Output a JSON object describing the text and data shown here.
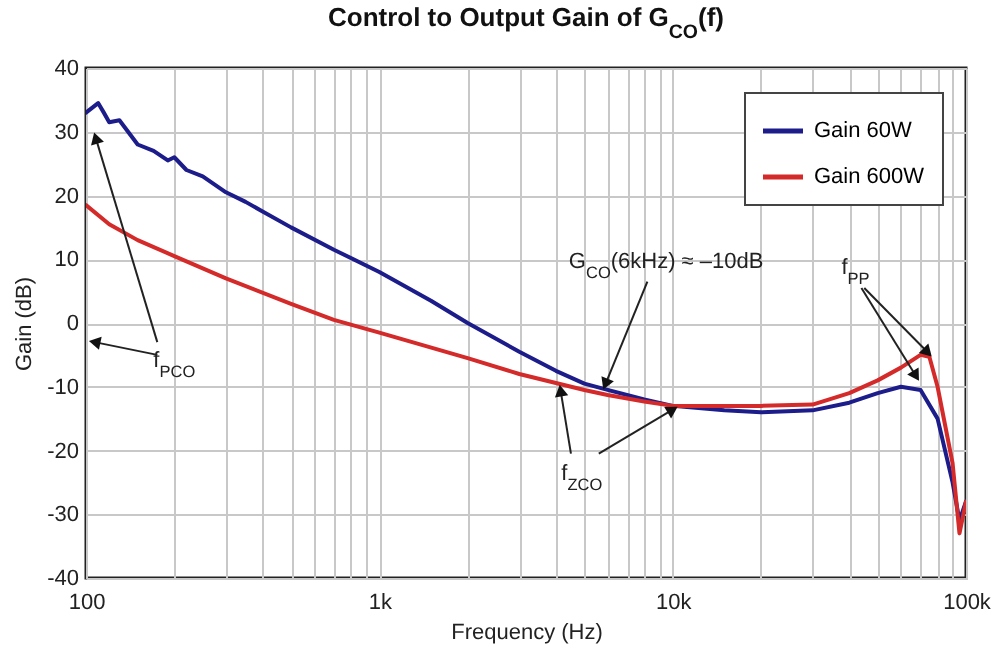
{
  "chart_data": {
    "type": "line",
    "title": "Control to Output Gain of G$_{CO}$(f)",
    "xlabel": "Frequency (Hz)",
    "ylabel": "Gain (dB)",
    "log": "x",
    "grid": true,
    "legend": "top right",
    "line_style": "solid",
    "xlim": [
      100,
      100000
    ],
    "ylim": [
      -40,
      40
    ],
    "xticks": [
      {
        "value": 100,
        "label": "100"
      },
      {
        "value": 200,
        "label": null
      },
      {
        "value": 300,
        "label": null
      },
      {
        "value": 400,
        "label": null
      },
      {
        "value": 500,
        "label": null
      },
      {
        "value": 600,
        "label": null
      },
      {
        "value": 700,
        "label": null
      },
      {
        "value": 800,
        "label": null
      },
      {
        "value": 900,
        "label": null
      },
      {
        "value": 1000,
        "label": "1k"
      },
      {
        "value": 2000,
        "label": null
      },
      {
        "value": 3000,
        "label": null
      },
      {
        "value": 4000,
        "label": null
      },
      {
        "value": 5000,
        "label": null
      },
      {
        "value": 6000,
        "label": null
      },
      {
        "value": 7000,
        "label": null
      },
      {
        "value": 8000,
        "label": null
      },
      {
        "value": 9000,
        "label": null
      },
      {
        "value": 10000,
        "label": "10k"
      },
      {
        "value": 20000,
        "label": null
      },
      {
        "value": 30000,
        "label": null
      },
      {
        "value": 40000,
        "label": null
      },
      {
        "value": 50000,
        "label": null
      },
      {
        "value": 60000,
        "label": null
      },
      {
        "value": 70000,
        "label": null
      },
      {
        "value": 80000,
        "label": null
      },
      {
        "value": 90000,
        "label": null
      },
      {
        "value": 100000,
        "label": "100k"
      }
    ],
    "yticks": [
      -40,
      -30,
      -20,
      -10,
      0,
      10,
      20,
      30,
      40
    ],
    "annotations": [
      {
        "text": "f$_{PCO}$",
        "x": 108,
        "y": 29
      },
      {
        "text": "G$_{CO}$(6kHz) ≈ –10dB",
        "x": 5900,
        "y": -9.6
      },
      {
        "text": "f$_{ZCO}$",
        "x": 4150,
        "y": -10.6
      },
      {
        "text": "f$_{PP}$",
        "x": 74000,
        "y": -4.6
      }
    ],
    "series": [
      {
        "name": "Gain 60W",
        "color": "#1c1c8a",
        "x": [
          100,
          110,
          115,
          120,
          130,
          150,
          170,
          190,
          200,
          220,
          250,
          300,
          350,
          400,
          500,
          700,
          1000,
          1500,
          2000,
          3000,
          4000,
          5000,
          6000,
          8000,
          10000,
          15000,
          20000,
          30000,
          40000,
          50000,
          60000,
          70000,
          80000,
          90000,
          95000,
          100000
        ],
        "values": [
          33,
          34.5,
          33,
          31.5,
          31.8,
          28,
          27,
          25.5,
          26,
          24,
          23,
          20.5,
          19,
          17.5,
          15,
          11.5,
          8,
          3.5,
          0,
          -4.5,
          -7.5,
          -9.5,
          -10.5,
          -12,
          -13,
          -13.7,
          -14,
          -13.7,
          -12.5,
          -11,
          -10,
          -10.5,
          -15,
          -25,
          -31,
          -28
        ]
      },
      {
        "name": "Gain 600W",
        "color": "#d42a2a",
        "x": [
          100,
          120,
          150,
          200,
          300,
          500,
          700,
          1000,
          2000,
          3000,
          5000,
          6000,
          8000,
          10000,
          20000,
          30000,
          40000,
          50000,
          60000,
          70000,
          75000,
          80000,
          90000,
          95000,
          100000
        ],
        "values": [
          18.5,
          15.5,
          13,
          10.5,
          7,
          3,
          0.5,
          -1.5,
          -5.5,
          -8,
          -10.5,
          -11.3,
          -12.3,
          -13,
          -13,
          -12.8,
          -11,
          -9,
          -7,
          -5,
          -5.3,
          -10,
          -22,
          -33,
          -28
        ]
      }
    ]
  }
}
